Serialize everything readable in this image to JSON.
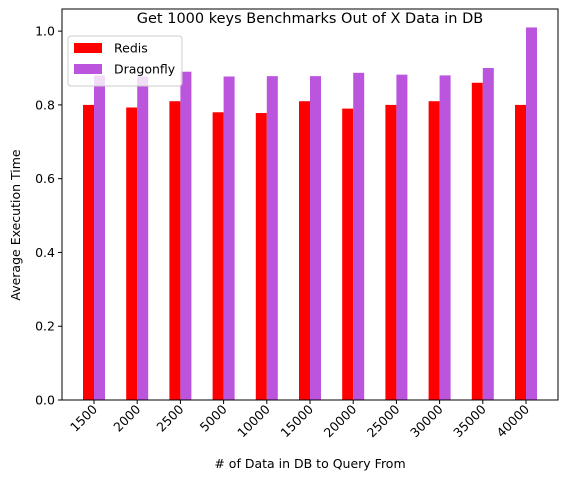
{
  "chart_data": {
    "type": "bar",
    "title": "Get 1000 keys Benchmarks Out of X Data in DB",
    "xlabel": "# of Data in DB to Query From",
    "ylabel": "Average Execution Time",
    "categories": [
      "1500",
      "2000",
      "2500",
      "5000",
      "10000",
      "15000",
      "20000",
      "25000",
      "30000",
      "35000",
      "40000"
    ],
    "series": [
      {
        "name": "Redis",
        "color": "#ff0000",
        "values": [
          0.8,
          0.793,
          0.81,
          0.78,
          0.778,
          0.81,
          0.79,
          0.8,
          0.81,
          0.86,
          0.8
        ]
      },
      {
        "name": "Dragonfly",
        "color": "#bb55dd",
        "values": [
          0.88,
          0.877,
          0.89,
          0.877,
          0.878,
          0.878,
          0.887,
          0.882,
          0.88,
          0.9,
          1.01
        ]
      }
    ],
    "yticks": [
      "0.0",
      "0.2",
      "0.4",
      "0.6",
      "0.8",
      "1.0"
    ],
    "ylim": [
      0,
      1.06
    ],
    "x_tick_rotation": 45,
    "legend_position": "top-left",
    "grid": false
  }
}
